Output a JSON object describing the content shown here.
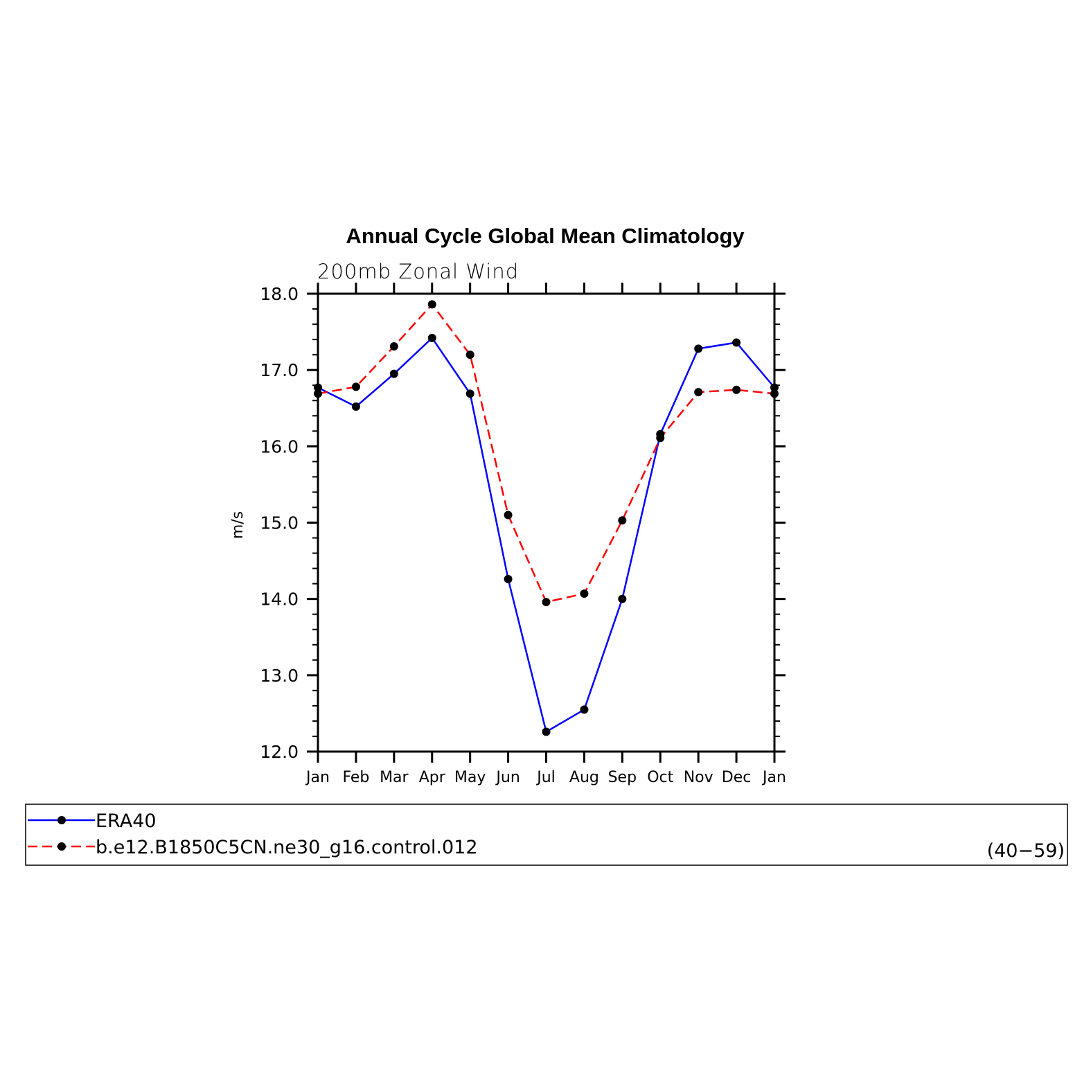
{
  "chart_data": {
    "type": "line",
    "title": "Annual Cycle Global Mean Climatology",
    "subtitle": "200mb Zonal Wind",
    "xlabel": "",
    "ylabel": "m/s",
    "x": [
      "Jan",
      "Feb",
      "Mar",
      "Apr",
      "May",
      "Jun",
      "Jul",
      "Aug",
      "Sep",
      "Oct",
      "Nov",
      "Dec",
      "Jan"
    ],
    "ylim": [
      12.0,
      18.0
    ],
    "yticks": [
      "12.0",
      "13.0",
      "14.0",
      "15.0",
      "16.0",
      "17.0",
      "18.0"
    ],
    "grid": false,
    "legend_position": "bottom",
    "series": [
      {
        "name": "ERA40",
        "color": "#0000ff",
        "dash": "solid",
        "marker": "filled-circle",
        "values": [
          16.77,
          16.52,
          16.95,
          17.42,
          16.69,
          14.26,
          12.26,
          12.55,
          14.0,
          16.16,
          17.28,
          17.36,
          16.77
        ]
      },
      {
        "name": "b.e12.B1850C5CN.ne30_g16.control.012",
        "color": "#ff0000",
        "dash": "dashed",
        "marker": "filled-circle",
        "values": [
          16.69,
          16.78,
          17.31,
          17.86,
          17.2,
          15.1,
          13.96,
          14.07,
          15.03,
          16.11,
          16.71,
          16.74,
          16.69
        ]
      }
    ],
    "legend_note": "(40−59)"
  }
}
